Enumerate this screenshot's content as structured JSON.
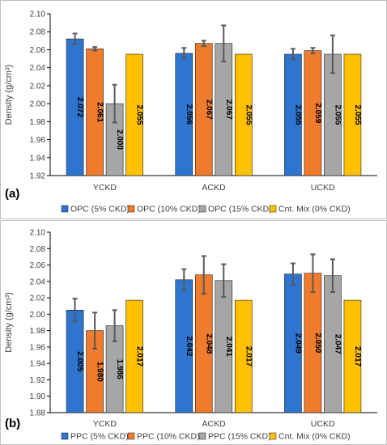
{
  "chart_data": [
    {
      "panel_label": "(a)",
      "type": "bar",
      "ylabel": "Density (g/cm³)",
      "ylim": [
        1.92,
        2.1
      ],
      "ytick_step": 0.02,
      "yticks": [
        "1.92",
        "1.94",
        "1.96",
        "1.98",
        "2.00",
        "2.02",
        "2.04",
        "2.06",
        "2.08",
        "2.10"
      ],
      "grid": false,
      "legend_position": "bottom",
      "categories": [
        "YCKD",
        "ACKD",
        "UCKD"
      ],
      "series": [
        {
          "name": "OPC (5% CKD)",
          "color": "#2E75D0",
          "values": [
            2.072,
            2.056,
            2.055
          ],
          "labels": [
            "2.072",
            "2.056",
            "2.055"
          ],
          "errors": [
            0.006,
            0.006,
            0.006
          ]
        },
        {
          "name": "OPC (10% CKD)",
          "color": "#F07B2C",
          "values": [
            2.061,
            2.067,
            2.059
          ],
          "labels": [
            "2.061",
            "2.067",
            "2.059"
          ],
          "errors": [
            0.002,
            0.003,
            0.003
          ]
        },
        {
          "name": "OPC (15% CKD)",
          "color": "#A6A6A6",
          "values": [
            2.0,
            2.067,
            2.055
          ],
          "labels": [
            "2.000",
            "2.067",
            "2.055"
          ],
          "errors": [
            0.021,
            0.02,
            0.021
          ]
        },
        {
          "name": "Cnt. Mix (0% CKD)",
          "color": "#FFC000",
          "values": [
            2.055,
            2.055,
            2.055
          ],
          "labels": [
            "2.055",
            "2.055",
            "2.055"
          ],
          "errors": [
            0,
            0,
            0
          ]
        }
      ]
    },
    {
      "panel_label": "(b)",
      "type": "bar",
      "ylabel": "Density (g/cm³)",
      "ylim": [
        1.88,
        2.1
      ],
      "ytick_step": 0.02,
      "yticks": [
        "1.88",
        "1.90",
        "1.92",
        "1.94",
        "1.96",
        "1.98",
        "2.00",
        "2.02",
        "2.04",
        "2.06",
        "2.08",
        "2.10"
      ],
      "grid": false,
      "legend_position": "bottom",
      "categories": [
        "YCKD",
        "ACKD",
        "UCKD"
      ],
      "series": [
        {
          "name": "PPC (5% CKD)",
          "color": "#2E75D0",
          "values": [
            2.005,
            2.042,
            2.049
          ],
          "labels": [
            "2.005",
            "2.042",
            "2.049"
          ],
          "errors": [
            0.014,
            0.013,
            0.013
          ]
        },
        {
          "name": "PPC (10% CKD)",
          "color": "#F07B2C",
          "values": [
            1.98,
            2.048,
            2.05
          ],
          "labels": [
            "1.980",
            "2.048",
            "2.050"
          ],
          "errors": [
            0.022,
            0.023,
            0.023
          ]
        },
        {
          "name": "PPC (15% CKD)",
          "color": "#A6A6A6",
          "values": [
            1.986,
            2.041,
            2.047
          ],
          "labels": [
            "1.986",
            "2.041",
            "2.047"
          ],
          "errors": [
            0.019,
            0.02,
            0.02
          ]
        },
        {
          "name": "Cnt. Mix (0% CKD)",
          "color": "#FFC000",
          "values": [
            2.017,
            2.017,
            2.017
          ],
          "labels": [
            "2.017",
            "2.017",
            "2.017"
          ],
          "errors": [
            0,
            0,
            0
          ]
        }
      ]
    }
  ]
}
